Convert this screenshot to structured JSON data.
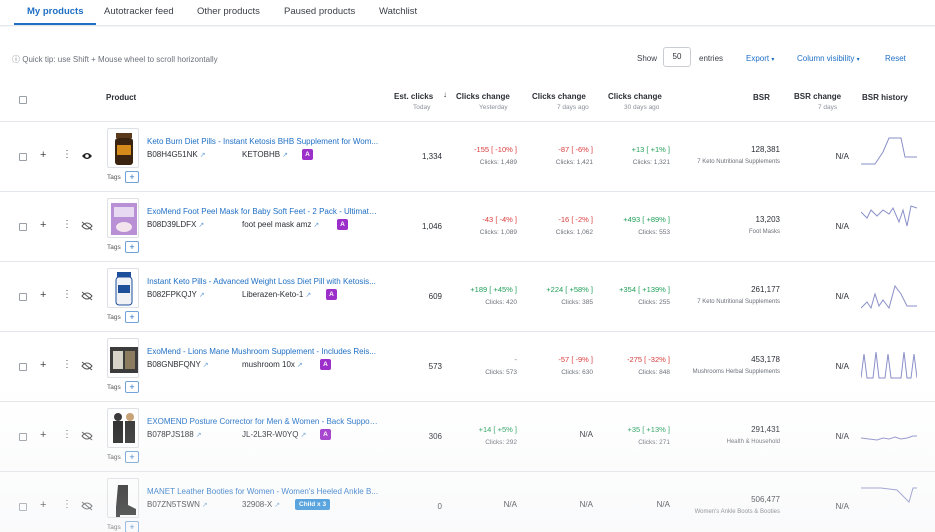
{
  "tabs": [
    "My products",
    "Autotracker feed",
    "Other products",
    "Paused products",
    "Watchlist"
  ],
  "toolbar": {
    "tip": "Quick tip: use Shift + Mouse wheel to scroll horizontally",
    "show": "Show",
    "entries_value": "50",
    "entries": "entries",
    "export": "Export",
    "column_visibility": "Column visibility",
    "reset": "Reset"
  },
  "headers": {
    "product": "Product",
    "est_clicks": "Est. clicks",
    "est_clicks_sub": "Today",
    "clicks_change": "Clicks change",
    "yesterday": "Yesterday",
    "days7": "7 days ago",
    "days30": "30 days ago",
    "bsr": "BSR",
    "bsr_change": "BSR change",
    "bsr_change_sub": "7 days",
    "bsr_history": "BSR history"
  },
  "tags_label": "Tags",
  "colors": {
    "accent": "#1f6fc4",
    "positive": "#1f9e57",
    "negative": "#d93b3b",
    "badge": "#9c2fc9",
    "child_badge": "#1f86d6"
  },
  "rows": [
    {
      "title": "Keto Burn Diet Pills - Instant Ketosis BHB Supplement for Wom...",
      "asin": "B08H4G51NK",
      "keyword": "KETOBHB",
      "badge": "A",
      "est_clicks": "1,334",
      "ch_y": "-155 [ -10% ]",
      "ch_y_clicks": "Clicks: 1,489",
      "ch_7": "-87 [ -6% ]",
      "ch_7_clicks": "Clicks: 1,421",
      "ch_30": "+13 [ +1% ]",
      "ch_30_clicks": "Clicks: 1,321",
      "bsr": "128,381",
      "bsr_cat": "7 Keto Nutritional Supplements",
      "bsr_change": "N/A",
      "eye": "visible"
    },
    {
      "title": "ExoMend Foot Peel Mask for Baby Soft Feet - 2 Pack - Ultimate...",
      "asin": "B08D39LDFX",
      "keyword": "foot peel mask amz",
      "badge": "A",
      "est_clicks": "1,046",
      "ch_y": "-43 [ -4% ]",
      "ch_y_clicks": "Clicks: 1,089",
      "ch_7": "-16 [ -2% ]",
      "ch_7_clicks": "Clicks: 1,062",
      "ch_30": "+493 [ +89% ]",
      "ch_30_clicks": "Clicks: 553",
      "bsr": "13,203",
      "bsr_cat": "Foot Masks",
      "bsr_change": "N/A",
      "eye": "hidden"
    },
    {
      "title": "Instant Keto Pills - Advanced Weight Loss Diet Pill with Ketosis...",
      "asin": "B082FPKQJY",
      "keyword": "Liberazen-Keto-1",
      "badge": "A",
      "est_clicks": "609",
      "ch_y": "+189 [ +45% ]",
      "ch_y_clicks": "Clicks: 420",
      "ch_7": "+224 [ +58% ]",
      "ch_7_clicks": "Clicks: 385",
      "ch_30": "+354 [ +139% ]",
      "ch_30_clicks": "Clicks: 255",
      "bsr": "261,177",
      "bsr_cat": "7 Keto Nutritional Supplements",
      "bsr_change": "N/A",
      "eye": "hidden"
    },
    {
      "title": "ExoMend - Lions Mane Mushroom Supplement - Includes Reis...",
      "asin": "B08GNBFQNY",
      "keyword": "mushroom 10x",
      "badge": "A",
      "est_clicks": "573",
      "ch_y": "-",
      "ch_y_clicks": "Clicks: 573",
      "ch_7": "-57 [ -9% ]",
      "ch_7_clicks": "Clicks: 630",
      "ch_30": "-275 [ -32% ]",
      "ch_30_clicks": "Clicks: 848",
      "bsr": "453,178",
      "bsr_cat": "Mushrooms Herbal Supplements",
      "bsr_change": "N/A",
      "eye": "hidden"
    },
    {
      "title": "EXOMEND Posture Corrector for Men & Women - Back Support...",
      "asin": "B078PJS188",
      "keyword": "JL-2L3R-W0YQ",
      "badge": "A",
      "est_clicks": "306",
      "ch_y": "+14 [ +5% ]",
      "ch_y_clicks": "Clicks: 292",
      "ch_7": "N/A",
      "ch_7_clicks": "",
      "ch_30": "+35 [ +13% ]",
      "ch_30_clicks": "Clicks: 271",
      "bsr": "291,431",
      "bsr_cat": "Health & Household",
      "bsr_change": "N/A",
      "eye": "hidden"
    },
    {
      "title": "MANET Leather Booties for Women - Women's Heeled Ankle B...",
      "asin": "B07ZN5TSWN",
      "keyword": "32908-X",
      "badge": "Child x 3",
      "est_clicks": "0",
      "ch_y": "N/A",
      "ch_y_clicks": "",
      "ch_7": "N/A",
      "ch_7_clicks": "",
      "ch_30": "N/A",
      "ch_30_clicks": "",
      "bsr": "506,477",
      "bsr_cat": "Women's Ankle Boots & Booties",
      "bsr_change": "N/A",
      "eye": "hidden"
    }
  ]
}
